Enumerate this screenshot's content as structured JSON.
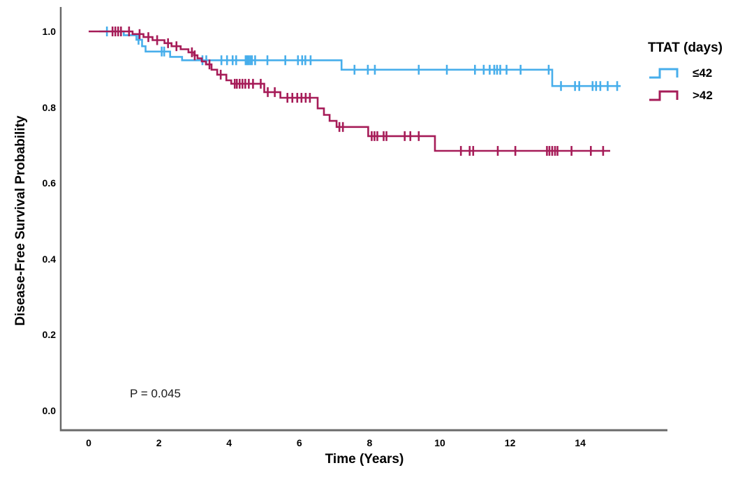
{
  "axes": {
    "y_title": "Disease-Free Survival Probability",
    "x_title": "Time (Years)",
    "x_ticks": [
      "0",
      "2",
      "4",
      "6",
      "8",
      "10",
      "12",
      "14"
    ],
    "y_ticks": [
      "1.0",
      "0.8",
      "0.6",
      "0.4",
      "0.2",
      "0.0"
    ]
  },
  "annotations": {
    "p_value": "P = 0.045"
  },
  "legend": {
    "title": "TTAT (days)",
    "items": [
      {
        "label": "≤42",
        "color": "#47aeeb"
      },
      {
        "label": ">42",
        "color": "#a61c58"
      }
    ]
  },
  "colors": {
    "axis_line": "#6a6a6a",
    "text": "#000000",
    "background": "#ffffff"
  },
  "chart_data": {
    "type": "line",
    "subtype": "kaplan-meier-step-survival",
    "title": "",
    "xlabel": "Time (Years)",
    "ylabel": "Disease-Free Survival Probability",
    "xlim": [
      0,
      16
    ],
    "ylim": [
      0.0,
      1.0
    ],
    "x_tick_values": [
      0,
      2,
      4,
      6,
      8,
      10,
      12,
      14
    ],
    "y_tick_values": [
      1.0,
      0.8,
      0.6,
      0.4,
      0.2,
      0.0
    ],
    "grid": false,
    "legend_position": "right",
    "annotation": {
      "text": "P = 0.045",
      "x": 1.2,
      "y": 0.045
    },
    "series": [
      {
        "name": "≤42",
        "group": "TTAT (days) ≤ 42",
        "color": "#47aeeb",
        "steps": [
          [
            0.3,
            1.0
          ],
          [
            1.0,
            0.99
          ],
          [
            1.36,
            0.978
          ],
          [
            1.52,
            0.961
          ],
          [
            1.62,
            0.947
          ],
          [
            2.32,
            0.933
          ],
          [
            2.66,
            0.924
          ],
          [
            7.2,
            0.899
          ],
          [
            13.2,
            0.856
          ],
          [
            15.15,
            0.856
          ]
        ],
        "censor_times": [
          0.52,
          1.42,
          2.08,
          2.15,
          3.24,
          3.35,
          3.78,
          3.94,
          4.1,
          4.2,
          4.47,
          4.51,
          4.55,
          4.6,
          4.65,
          4.74,
          5.09,
          5.6,
          5.96,
          6.08,
          6.17,
          6.32,
          7.57,
          7.95,
          8.15,
          9.4,
          10.2,
          11.0,
          11.25,
          11.42,
          11.55,
          11.63,
          11.72,
          11.9,
          12.3,
          13.1,
          13.45,
          13.85,
          13.97,
          14.35,
          14.45,
          14.57,
          14.78,
          15.05
        ]
      },
      {
        "name": ">42",
        "group": "TTAT (days) > 42",
        "color": "#a61c58",
        "steps": [
          [
            0.0,
            1.0
          ],
          [
            1.25,
            0.993
          ],
          [
            1.56,
            0.985
          ],
          [
            1.82,
            0.977
          ],
          [
            2.16,
            0.969
          ],
          [
            2.36,
            0.961
          ],
          [
            2.62,
            0.953
          ],
          [
            2.84,
            0.945
          ],
          [
            3.0,
            0.937
          ],
          [
            3.1,
            0.929
          ],
          [
            3.22,
            0.921
          ],
          [
            3.34,
            0.913
          ],
          [
            3.5,
            0.899
          ],
          [
            3.66,
            0.886
          ],
          [
            3.92,
            0.871
          ],
          [
            4.06,
            0.862
          ],
          [
            5.0,
            0.84
          ],
          [
            5.46,
            0.825
          ],
          [
            6.52,
            0.797
          ],
          [
            6.7,
            0.78
          ],
          [
            6.86,
            0.764
          ],
          [
            7.06,
            0.748
          ],
          [
            7.96,
            0.724
          ],
          [
            9.86,
            0.685
          ],
          [
            14.85,
            0.685
          ]
        ],
        "censor_times": [
          0.68,
          0.76,
          0.84,
          0.92,
          1.15,
          1.45,
          1.7,
          1.95,
          2.26,
          2.5,
          2.94,
          3.02,
          3.44,
          3.76,
          4.16,
          4.22,
          4.3,
          4.38,
          4.46,
          4.56,
          4.68,
          4.9,
          5.1,
          5.3,
          5.66,
          5.8,
          5.94,
          6.06,
          6.18,
          6.3,
          7.14,
          7.24,
          8.06,
          8.14,
          8.22,
          8.4,
          8.48,
          9.0,
          9.16,
          9.4,
          10.6,
          10.85,
          10.95,
          11.65,
          12.15,
          13.05,
          13.12,
          13.2,
          13.28,
          13.35,
          13.75,
          14.3,
          14.65
        ]
      }
    ]
  }
}
